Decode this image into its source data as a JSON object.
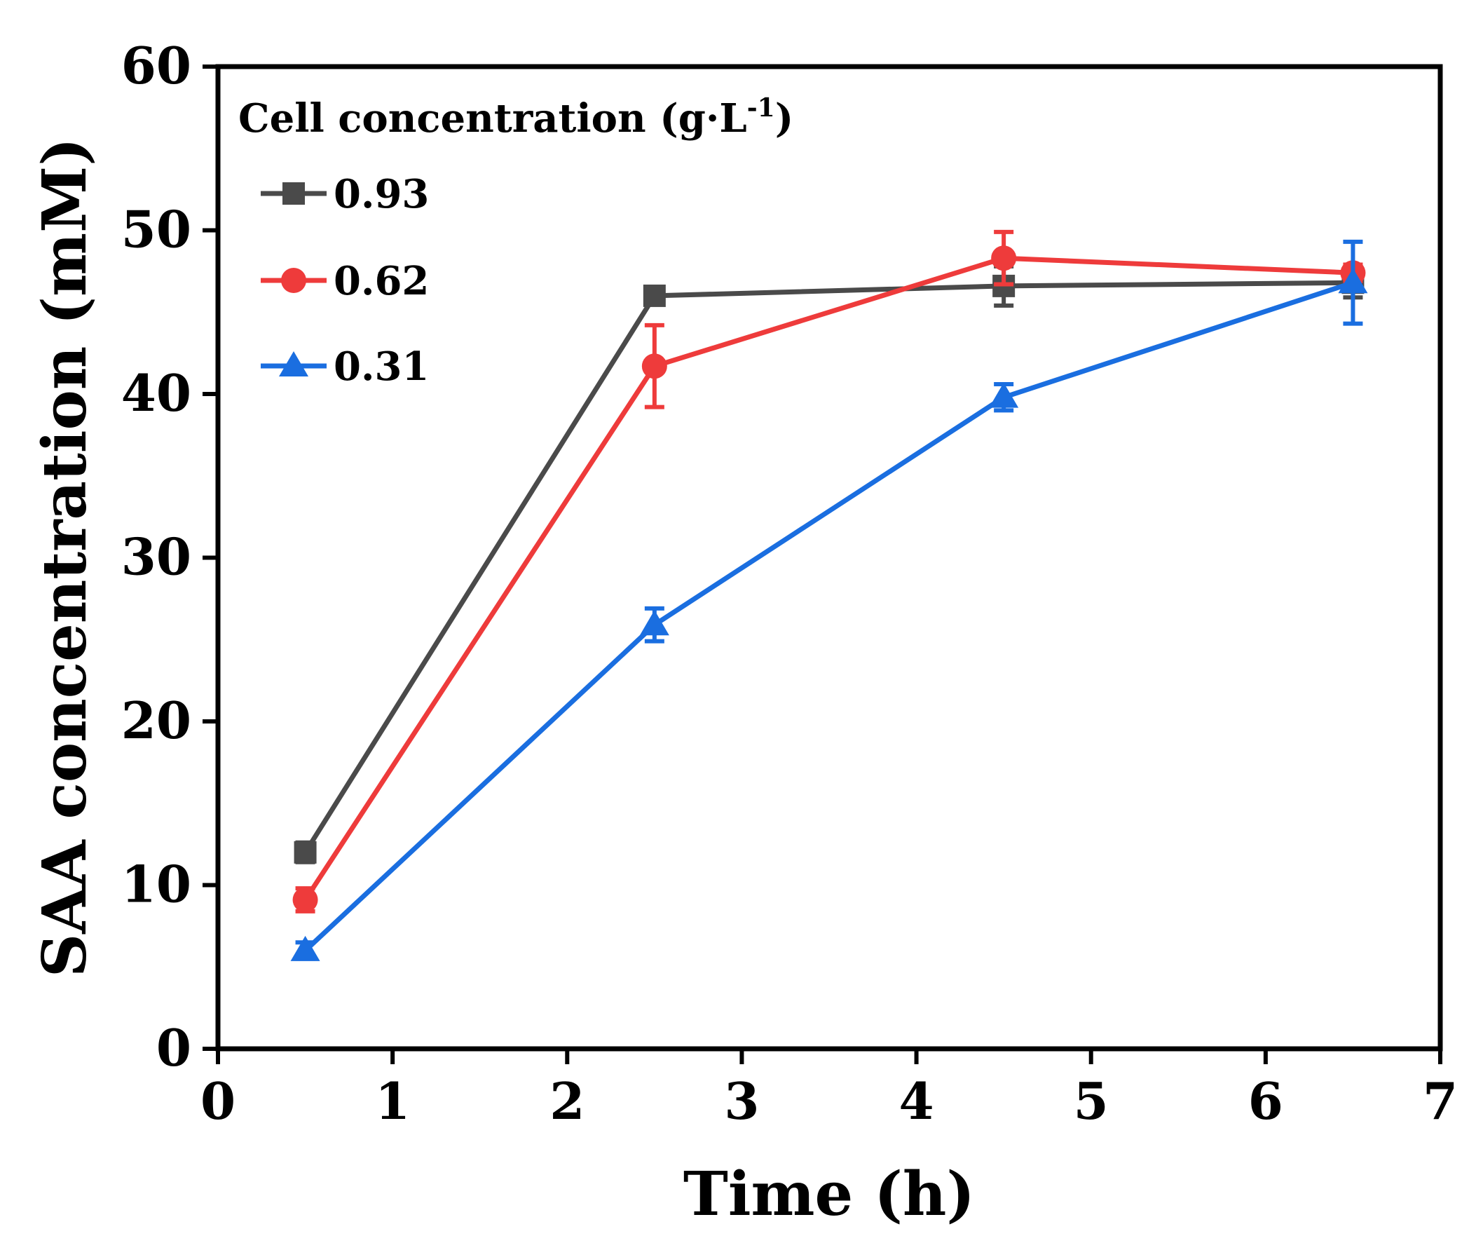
{
  "chart_data": {
    "type": "line",
    "title": "",
    "xlabel": "Time (h)",
    "ylabel": "SAA concentration (mM)",
    "xlim": [
      0,
      7
    ],
    "ylim": [
      0,
      60
    ],
    "xticks": [
      0,
      1,
      2,
      3,
      4,
      5,
      6,
      7
    ],
    "yticks": [
      0,
      10,
      20,
      30,
      40,
      50,
      60
    ],
    "grid": false,
    "legend": {
      "title_main": "Cell concentration (g·L",
      "title_sup": "-1",
      "title_end": ")",
      "placement": "top-left"
    },
    "x": [
      0.5,
      2.5,
      4.5,
      6.5
    ],
    "series": [
      {
        "name": "0.93",
        "marker": "square",
        "color": "#4a4a4a",
        "values": [
          12.0,
          46.0,
          46.6,
          46.8
        ],
        "errors": [
          0.6,
          0.5,
          1.2,
          0.9
        ]
      },
      {
        "name": "0.62",
        "marker": "circle",
        "color": "#ee3b3b",
        "values": [
          9.1,
          41.7,
          48.3,
          47.4
        ],
        "errors": [
          0.7,
          2.5,
          1.6,
          0.5
        ]
      },
      {
        "name": "0.31",
        "marker": "triangle",
        "color": "#1a6ee0",
        "values": [
          6.0,
          25.9,
          39.8,
          46.8
        ],
        "errors": [
          0.5,
          1.0,
          0.8,
          2.5
        ]
      }
    ]
  }
}
